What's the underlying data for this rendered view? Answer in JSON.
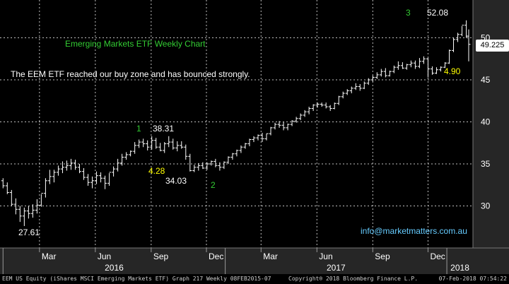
{
  "footer": {
    "left": "EEM US Equity (iShares MSCI Emerging Markets ETF) Graph 217  Weekly 08FEB2015-07",
    "center": "Copyright® 2018 Bloomberg Finance L.P.",
    "right": "07-Feb-2018 07:54:22"
  },
  "chart_data": {
    "type": "bar",
    "subtype": "ohlc",
    "title": "Emerging Markets ETF Weekly Chart",
    "subtitle": "The EEM ETF reached our buy zone and has bounced strongly.",
    "xlabel": "",
    "ylabel": "",
    "ylim": [
      25,
      54.5
    ],
    "y_ticks": [
      30,
      35,
      40,
      45,
      50
    ],
    "x_months": [
      "Mar",
      "Jun",
      "Sep",
      "Dec",
      "Mar",
      "Jun",
      "Sep",
      "Dec"
    ],
    "x_years": [
      "2016",
      "2017",
      "2018"
    ],
    "grid": true,
    "axis_side": "right",
    "last_price": "49.225",
    "series": [
      {
        "x": [
          "2016-01-01",
          "2016-01-08",
          "2016-01-15",
          "2016-01-22",
          "2016-01-29",
          "2016-02-05",
          "2016-02-12",
          "2016-02-19",
          "2016-02-26",
          "2016-03-04",
          "2016-03-11",
          "2016-03-18",
          "2016-03-25",
          "2016-04-01",
          "2016-04-08",
          "2016-04-15",
          "2016-04-22",
          "2016-04-29",
          "2016-05-06",
          "2016-05-13",
          "2016-05-20",
          "2016-05-27",
          "2016-06-03",
          "2016-06-10",
          "2016-06-17",
          "2016-06-24",
          "2016-07-01",
          "2016-07-08",
          "2016-07-15",
          "2016-07-22",
          "2016-07-29",
          "2016-08-05",
          "2016-08-12",
          "2016-08-19",
          "2016-08-26",
          "2016-09-02",
          "2016-09-09",
          "2016-09-16",
          "2016-09-23",
          "2016-09-30",
          "2016-10-07",
          "2016-10-14",
          "2016-10-21",
          "2016-10-28",
          "2016-11-04",
          "2016-11-11",
          "2016-11-18",
          "2016-11-25",
          "2016-12-02",
          "2016-12-09",
          "2016-12-16",
          "2016-12-23",
          "2016-12-30",
          "2017-01-06",
          "2017-01-13",
          "2017-01-20",
          "2017-01-27",
          "2017-02-03",
          "2017-02-10",
          "2017-02-17",
          "2017-02-24",
          "2017-03-03",
          "2017-03-10",
          "2017-03-17",
          "2017-03-24",
          "2017-03-31",
          "2017-04-07",
          "2017-04-14",
          "2017-04-21",
          "2017-04-28",
          "2017-05-05",
          "2017-05-12",
          "2017-05-19",
          "2017-05-26",
          "2017-06-02",
          "2017-06-09",
          "2017-06-16",
          "2017-06-23",
          "2017-06-30",
          "2017-07-07",
          "2017-07-14",
          "2017-07-21",
          "2017-07-28",
          "2017-08-04",
          "2017-08-11",
          "2017-08-18",
          "2017-08-25",
          "2017-09-01",
          "2017-09-08",
          "2017-09-15",
          "2017-09-22",
          "2017-09-29",
          "2017-10-06",
          "2017-10-13",
          "2017-10-20",
          "2017-10-27",
          "2017-11-03",
          "2017-11-10",
          "2017-11-17",
          "2017-11-24",
          "2017-12-01",
          "2017-12-08",
          "2017-12-15",
          "2017-12-22",
          "2017-12-29",
          "2018-01-05",
          "2018-01-12",
          "2018-01-19",
          "2018-01-26",
          "2018-02-02",
          "2018-02-06"
        ],
        "open": [
          33.0,
          32.4,
          31.6,
          30.2,
          29.6,
          28.8,
          29.4,
          29.1,
          29.5,
          30.1,
          31.5,
          33.0,
          33.5,
          34.0,
          34.4,
          34.6,
          34.8,
          35.1,
          34.6,
          34.1,
          33.4,
          32.8,
          33.0,
          33.6,
          33.3,
          32.7,
          34.0,
          34.4,
          35.1,
          35.8,
          36.1,
          36.5,
          37.2,
          37.6,
          37.4,
          37.0,
          37.8,
          37.0,
          36.6,
          37.4,
          37.6,
          36.9,
          37.2,
          37.0,
          35.9,
          34.2,
          34.6,
          34.8,
          34.5,
          35.0,
          35.3,
          34.8,
          34.6,
          35.2,
          35.8,
          36.2,
          36.6,
          37.0,
          37.4,
          37.9,
          38.1,
          38.4,
          38.0,
          38.6,
          39.3,
          39.7,
          39.6,
          39.3,
          39.7,
          40.1,
          40.4,
          40.8,
          41.2,
          41.6,
          42.0,
          42.1,
          42.0,
          41.8,
          41.6,
          42.2,
          43.0,
          43.4,
          43.7,
          44.0,
          44.2,
          44.0,
          44.6,
          45.0,
          45.3,
          45.6,
          46.0,
          45.5,
          46.0,
          46.5,
          46.7,
          46.4,
          46.8,
          47.0,
          46.6,
          47.2,
          47.5,
          46.3,
          45.8,
          46.2,
          46.5,
          47.0,
          48.5,
          49.8,
          50.4,
          51.5,
          50.2
        ],
        "high": [
          33.3,
          32.8,
          31.9,
          30.9,
          30.0,
          29.8,
          30.0,
          30.2,
          30.8,
          31.4,
          33.3,
          34.3,
          34.3,
          34.8,
          35.3,
          35.4,
          35.6,
          35.5,
          35.0,
          34.5,
          33.8,
          33.5,
          34.1,
          34.0,
          33.6,
          33.9,
          34.7,
          35.6,
          36.2,
          36.4,
          36.6,
          37.6,
          37.9,
          38.0,
          37.8,
          38.3,
          38.1,
          37.5,
          37.6,
          38.3,
          38.0,
          37.7,
          37.7,
          37.3,
          36.2,
          34.9,
          35.1,
          35.2,
          35.2,
          35.4,
          35.6,
          35.2,
          35.3,
          35.9,
          36.3,
          36.7,
          37.2,
          37.5,
          38.0,
          38.3,
          38.5,
          38.7,
          38.6,
          39.4,
          39.9,
          40.1,
          40.0,
          39.8,
          40.2,
          40.6,
          41.0,
          41.4,
          41.8,
          42.1,
          42.3,
          42.3,
          42.3,
          42.0,
          42.3,
          43.1,
          43.6,
          43.9,
          44.2,
          44.6,
          44.5,
          44.8,
          45.2,
          45.5,
          45.9,
          46.3,
          46.4,
          46.1,
          46.7,
          47.2,
          47.1,
          46.9,
          47.3,
          47.3,
          47.6,
          47.8,
          47.6,
          46.6,
          46.5,
          46.6,
          47.1,
          48.6,
          50.0,
          50.6,
          51.4,
          52.08,
          51.0
        ],
        "low": [
          32.1,
          31.4,
          30.0,
          29.0,
          28.1,
          27.61,
          28.5,
          28.6,
          29.1,
          29.9,
          31.0,
          32.6,
          32.8,
          33.6,
          33.9,
          34.2,
          34.3,
          34.3,
          33.9,
          33.1,
          32.4,
          32.1,
          32.6,
          32.8,
          32.0,
          32.4,
          33.5,
          34.1,
          34.8,
          35.5,
          35.9,
          36.2,
          36.9,
          37.0,
          36.6,
          36.7,
          36.8,
          36.5,
          36.3,
          37.0,
          36.7,
          36.5,
          36.8,
          35.5,
          34.1,
          34.03,
          34.2,
          34.4,
          34.3,
          34.8,
          34.6,
          34.2,
          34.4,
          35.0,
          35.5,
          35.9,
          36.3,
          36.8,
          37.1,
          37.6,
          37.8,
          37.6,
          37.8,
          38.4,
          39.1,
          39.3,
          39.0,
          39.0,
          39.5,
          39.9,
          40.2,
          40.6,
          40.9,
          41.3,
          41.7,
          41.8,
          41.6,
          41.3,
          41.5,
          42.0,
          42.8,
          43.2,
          43.4,
          43.8,
          43.7,
          43.9,
          44.4,
          44.8,
          45.1,
          45.4,
          45.3,
          45.4,
          45.8,
          46.2,
          46.3,
          46.2,
          46.5,
          46.3,
          46.4,
          46.9,
          45.3,
          45.6,
          45.7,
          46.0,
          46.4,
          46.9,
          48.3,
          49.5,
          50.2,
          50.0,
          47.2
        ],
        "close": [
          32.4,
          31.6,
          30.2,
          29.6,
          28.8,
          29.4,
          29.1,
          29.5,
          30.1,
          31.5,
          33.0,
          33.5,
          34.0,
          34.4,
          34.6,
          34.8,
          35.1,
          34.6,
          34.1,
          33.4,
          32.8,
          33.0,
          33.6,
          33.3,
          32.7,
          34.0,
          34.4,
          35.1,
          35.8,
          36.1,
          36.5,
          37.2,
          37.6,
          37.4,
          37.0,
          37.8,
          37.0,
          36.6,
          37.4,
          37.6,
          36.9,
          37.2,
          37.0,
          35.9,
          34.2,
          34.6,
          34.8,
          34.5,
          35.0,
          35.3,
          34.8,
          34.6,
          35.2,
          35.8,
          36.2,
          36.6,
          37.0,
          37.4,
          37.9,
          38.1,
          38.4,
          38.0,
          38.6,
          39.3,
          39.7,
          39.6,
          39.3,
          39.7,
          40.1,
          40.4,
          40.8,
          41.2,
          41.6,
          42.0,
          42.1,
          42.0,
          41.8,
          41.6,
          42.2,
          43.0,
          43.4,
          43.7,
          44.0,
          44.2,
          44.0,
          44.6,
          45.0,
          45.3,
          45.6,
          46.0,
          45.5,
          46.0,
          46.5,
          46.7,
          46.4,
          46.8,
          47.0,
          46.6,
          47.2,
          47.5,
          46.3,
          45.8,
          46.2,
          46.5,
          47.0,
          48.5,
          49.8,
          50.4,
          51.5,
          50.2,
          49.225
        ]
      }
    ],
    "annotations": [
      {
        "text": "27.61",
        "color": "#ffffff"
      },
      {
        "text": "1",
        "color": "#33cc33"
      },
      {
        "text": "38.31",
        "color": "#ffffff"
      },
      {
        "text": "4.28",
        "color": "#ffff00"
      },
      {
        "text": "34.03",
        "color": "#ffffff"
      },
      {
        "text": "2",
        "color": "#33cc33"
      },
      {
        "text": "3",
        "color": "#33cc33"
      },
      {
        "text": "52.08",
        "color": "#ffffff"
      },
      {
        "text": "4.90",
        "color": "#ffff00"
      },
      {
        "text": "info@marketmatters.com.au",
        "color": "#66ccff"
      }
    ],
    "colors": {
      "background": "#000000",
      "bars": "#ffffff",
      "title": "#33cc33",
      "grid": "#bfbfbf",
      "axis_panel": "#262626"
    }
  }
}
